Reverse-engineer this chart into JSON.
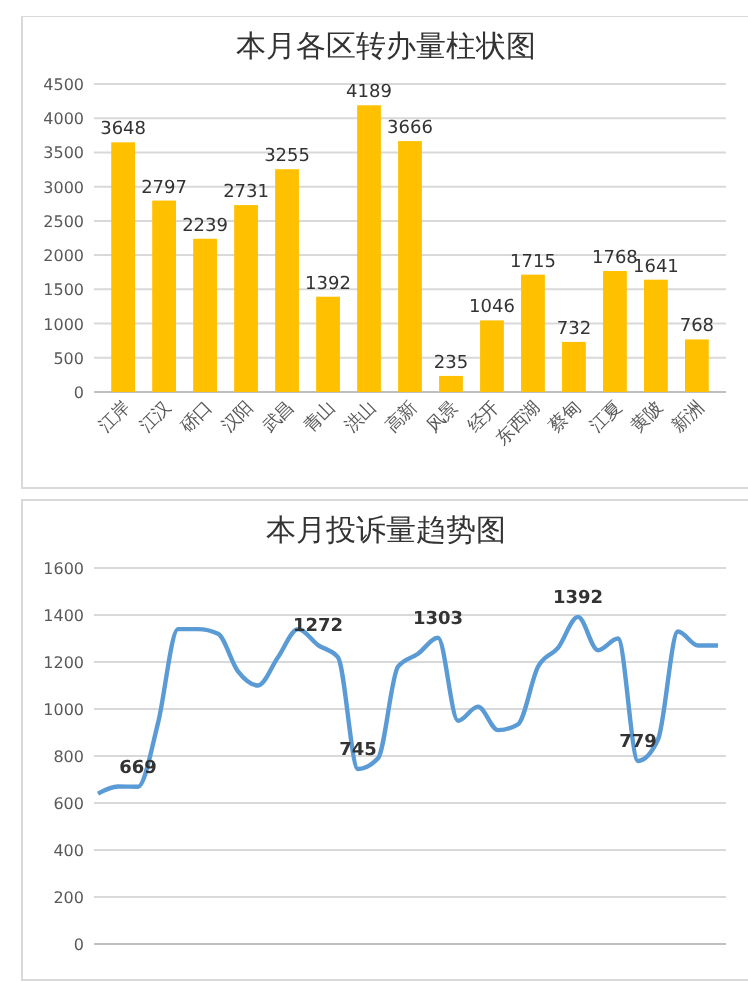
{
  "chart_data": [
    {
      "type": "bar",
      "title": "本月各区转办量柱状图",
      "categories": [
        "江岸",
        "江汉",
        "硚口",
        "汉阳",
        "武昌",
        "青山",
        "洪山",
        "高新",
        "风景",
        "经开",
        "东西湖",
        "蔡甸",
        "江夏",
        "黄陂",
        "新洲"
      ],
      "values": [
        3648,
        2797,
        2239,
        2731,
        3255,
        1392,
        4189,
        3666,
        235,
        1046,
        1715,
        732,
        1768,
        1641,
        768
      ],
      "color": "#ffc000",
      "ylim": [
        0,
        4500
      ],
      "yticks": [
        0,
        500,
        1000,
        1500,
        2000,
        2500,
        3000,
        3500,
        4000,
        4500
      ],
      "grid": "y",
      "data_labels": true
    },
    {
      "type": "line",
      "title": "本月投诉量趋势图",
      "categories": [
        null,
        null,
        null,
        null,
        null,
        null,
        null,
        null,
        null,
        null,
        null,
        null,
        null,
        null,
        null,
        null,
        null,
        null,
        null,
        null,
        null,
        null,
        null,
        null,
        null,
        null,
        null,
        null,
        null,
        null,
        null,
        null
      ],
      "series": [
        {
          "color": "#5b9bd5",
          "values": [
            640,
            670,
            669,
            940,
            1340,
            1340,
            1320,
            1160,
            1100,
            1220,
            1340,
            1272,
            1220,
            745,
            790,
            1180,
            1235,
            1303,
            950,
            1010,
            910,
            935,
            1180,
            1260,
            1392,
            1250,
            1300,
            779,
            870,
            1330,
            1270,
            1270
          ],
          "value_labels": [
            null,
            null,
            "669",
            null,
            null,
            null,
            null,
            null,
            null,
            null,
            null,
            "1272",
            null,
            "745",
            null,
            null,
            null,
            "1303",
            null,
            null,
            null,
            null,
            null,
            null,
            "1392",
            null,
            null,
            "779",
            null,
            null,
            null,
            null
          ]
        }
      ],
      "ylim": [
        0,
        1600
      ],
      "yticks": [
        0,
        200,
        400,
        600,
        800,
        1000,
        1200,
        1400,
        1600
      ],
      "grid": "y",
      "marker": "none",
      "line_style": "solid"
    }
  ]
}
